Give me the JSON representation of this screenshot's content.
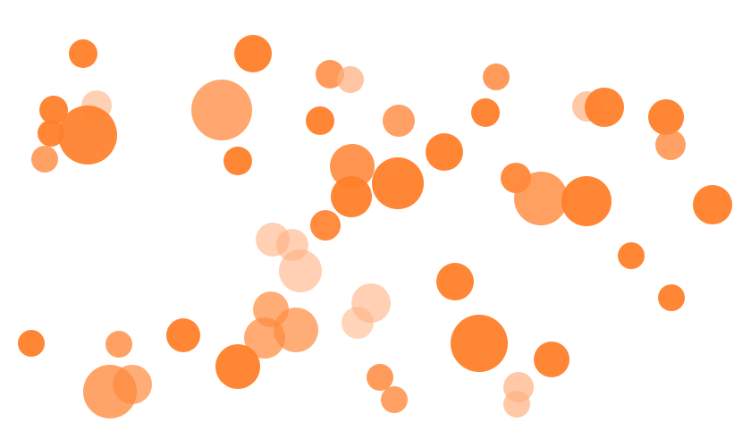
{
  "graphic": {
    "subject": "bokeh-dots",
    "colors": {
      "solid": "#ff7f2a",
      "light": "#ff8a3d",
      "pale": "#ffb080"
    }
  }
}
